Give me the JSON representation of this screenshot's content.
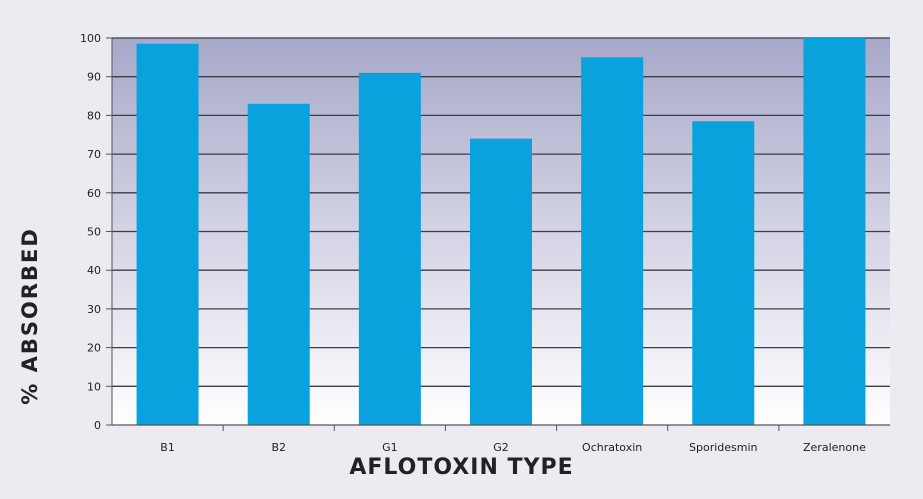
{
  "chart_data": {
    "type": "bar",
    "categories": [
      "B1",
      "B2",
      "G1",
      "G2",
      "Ochratoxin",
      "Sporidesmin",
      "Zeralenone"
    ],
    "values": [
      98.5,
      83,
      91,
      74,
      95,
      78.5,
      100
    ],
    "xlabel": "AFLOTOXIN TYPE",
    "ylabel": "% ABSORBED",
    "ylim": [
      0,
      100
    ],
    "yticks": [
      "0",
      "10",
      "20",
      "30",
      "40",
      "50",
      "60",
      "70",
      "80",
      "90",
      "100"
    ],
    "grid": true,
    "colors": {
      "bar": "#0aa2dc",
      "plot_top": "#a7a8c9",
      "plot_bottom": "#ffffff",
      "page_bg": "#ebebf1",
      "text": "#222222"
    }
  }
}
